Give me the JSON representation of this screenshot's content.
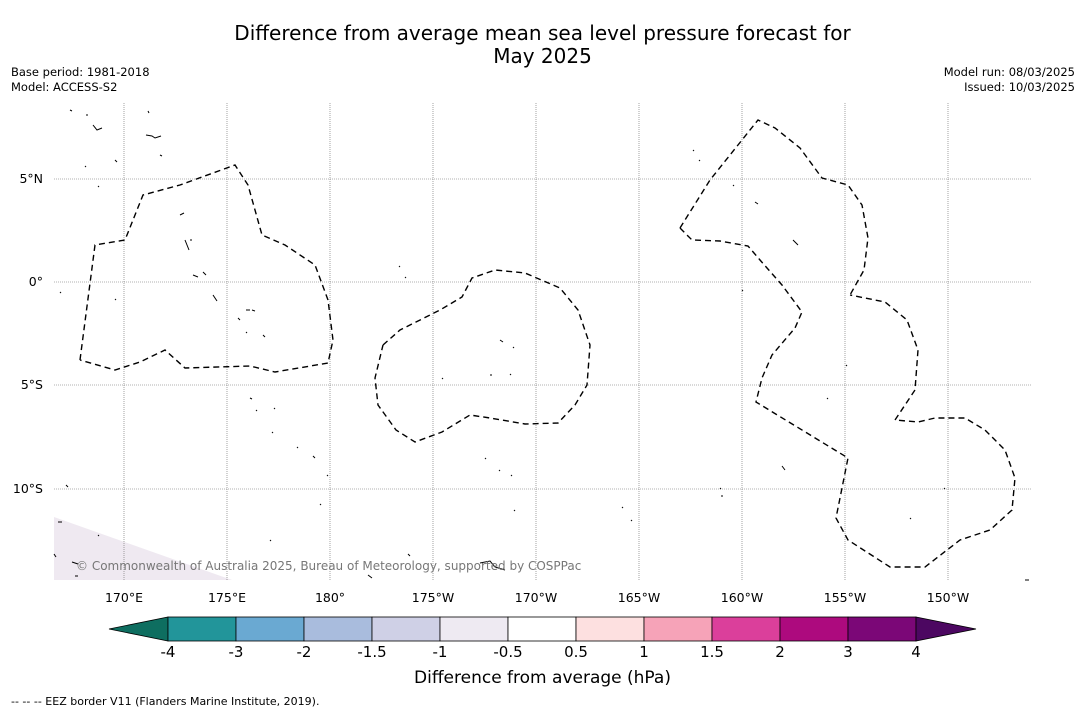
{
  "header": {
    "title_line1": "Difference from average mean sea level pressure forecast for",
    "title_line2": "May 2025",
    "base_period": "Base period: 1981-2018",
    "model": "Model: ACCESS-S2",
    "model_run": "Model run: 08/03/2025",
    "issued": "Issued: 10/03/2025"
  },
  "map": {
    "lat_labels": [
      "5°N",
      "0°",
      "5°S",
      "10°S"
    ],
    "lon_labels": [
      "170°E",
      "175°E",
      "180°",
      "175°W",
      "170°W",
      "165°W",
      "160°W",
      "155°W",
      "150°W"
    ],
    "copyright": "© Commonwealth of Australia 2025, Bureau of Meteorology, supported by COSPPac"
  },
  "colorbar": {
    "label": "Difference from average (hPa)",
    "ticks": [
      "-4",
      "-3",
      "-2",
      "-1.5",
      "-1",
      "-0.5",
      "0.5",
      "1",
      "1.5",
      "2",
      "3",
      "4"
    ],
    "colors": [
      "#0e6e60",
      "#22959a",
      "#6aa9d2",
      "#a9bcdd",
      "#cfd0e6",
      "#eeeaf2",
      "#ffffff",
      "#fde0e0",
      "#f6a3b8",
      "#db3f9b",
      "#ad0a7e",
      "#7b0777",
      "#4c0761"
    ]
  },
  "footnote": "--  --  -- EEZ border V11 (Flanders Marine Institute, 2019)."
}
